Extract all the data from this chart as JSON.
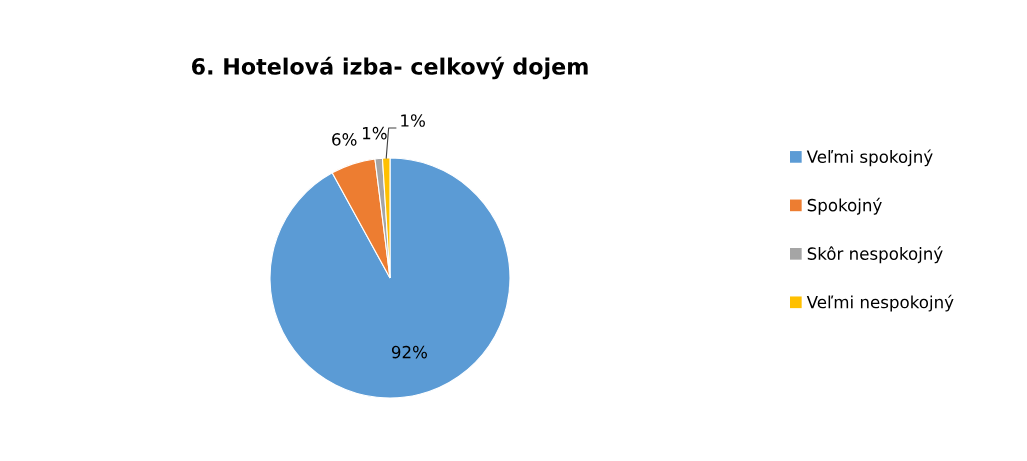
{
  "chart_data": {
    "type": "pie",
    "title": "6. Hotelová izba- celkový dojem",
    "categories": [
      "Veľmi spokojný",
      "Spokojný",
      "Skôr nespokojný",
      "Veľmi nespokojný"
    ],
    "values": [
      92,
      6,
      1,
      1
    ],
    "colors": [
      "#5b9bd5",
      "#ed7d31",
      "#a5a5a5",
      "#ffc000"
    ],
    "value_labels": [
      "92%",
      "6%",
      "1%",
      "1%"
    ],
    "legend": "right"
  }
}
